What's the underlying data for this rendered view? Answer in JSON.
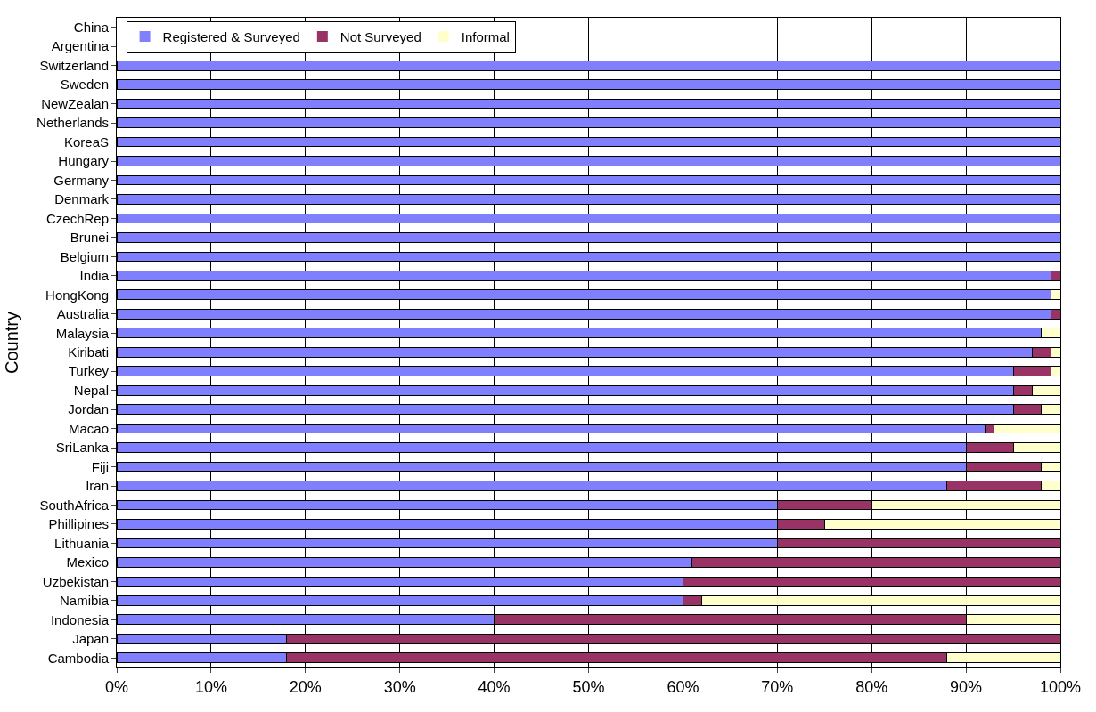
{
  "chart_data": {
    "type": "bar",
    "orientation": "horizontal",
    "stacked": true,
    "ylabel": "Country",
    "categories": [
      "China",
      "Argentina",
      "Switzerland",
      "Sweden",
      "NewZealan",
      "Netherlands",
      "KoreaS",
      "Hungary",
      "Germany",
      "Denmark",
      "CzechRep",
      "Brunei",
      "Belgium",
      "India",
      "HongKong",
      "Australia",
      "Malaysia",
      "Kiribati",
      "Turkey",
      "Nepal",
      "Jordan",
      "Macao",
      "SriLanka",
      "Fiji",
      "Iran",
      "SouthAfrica",
      "Phillipines",
      "Lithuania",
      "Mexico",
      "Uzbekistan",
      "Namibia",
      "Indonesia",
      "Japan",
      "Cambodia"
    ],
    "series": [
      {
        "name": "Registered & Surveyed",
        "color": "#8080ff",
        "values": [
          null,
          null,
          100,
          100,
          100,
          100,
          100,
          100,
          100,
          100,
          100,
          100,
          100,
          99,
          99,
          99,
          98,
          97,
          95,
          95,
          95,
          92,
          90,
          90,
          88,
          70,
          70,
          70,
          61,
          60,
          60,
          40,
          18,
          18
        ]
      },
      {
        "name": "Not Surveyed",
        "color": "#993366",
        "values": [
          null,
          null,
          0,
          0,
          0,
          0,
          0,
          0,
          0,
          0,
          0,
          0,
          0,
          1,
          0,
          1,
          0,
          2,
          4,
          2,
          3,
          1,
          5,
          8,
          10,
          10,
          5,
          30,
          39,
          40,
          2,
          50,
          82,
          70
        ]
      },
      {
        "name": "Informal",
        "color": "#ffffcc",
        "values": [
          null,
          null,
          0,
          0,
          0,
          0,
          0,
          0,
          0,
          0,
          0,
          0,
          0,
          0,
          1,
          0,
          2,
          1,
          1,
          3,
          2,
          7,
          5,
          2,
          2,
          20,
          25,
          0,
          0,
          0,
          38,
          10,
          0,
          12
        ]
      }
    ],
    "xlim": [
      0,
      100
    ],
    "xticks": [
      {
        "value": 0,
        "label": "0%"
      },
      {
        "value": 10,
        "label": "10%"
      },
      {
        "value": 20,
        "label": "20%"
      },
      {
        "value": 30,
        "label": "30%"
      },
      {
        "value": 40,
        "label": "40%"
      },
      {
        "value": 50,
        "label": "50%"
      },
      {
        "value": 60,
        "label": "60%"
      },
      {
        "value": 70,
        "label": "70%"
      },
      {
        "value": 80,
        "label": "80%"
      },
      {
        "value": 90,
        "label": "90%"
      },
      {
        "value": 100,
        "label": "100%"
      }
    ],
    "grid": "x",
    "legend": "top left"
  }
}
